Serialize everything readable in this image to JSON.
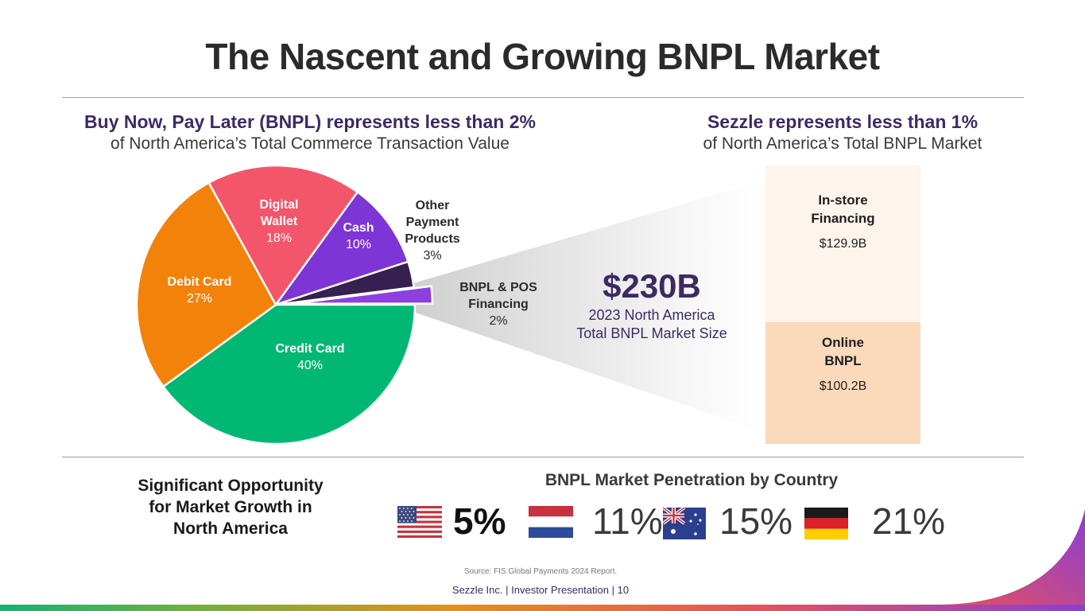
{
  "title": "The Nascent and Growing BNPL Market",
  "left_heading": {
    "strong": "Buy Now, Pay Later (BNPL) represents less than 2%",
    "sub": "of North America’s Total Commerce Transaction Value"
  },
  "right_heading": {
    "strong": "Sezzle represents less than 1%",
    "sub": "of North America’s Total BNPL Market"
  },
  "chart_data": {
    "type": "pie",
    "title": "North America Total Commerce Transaction Value",
    "slices": [
      {
        "label": "Credit Card",
        "value": 40,
        "display": "40%",
        "color": "#00b874",
        "label_color": "#ffffff"
      },
      {
        "label": "Debit Card",
        "value": 27,
        "display": "27%",
        "color": "#f2820a",
        "label_color": "#ffffff"
      },
      {
        "label": "Digital Wallet",
        "value": 18,
        "display": "18%",
        "color": "#f3566a",
        "label_color": "#ffffff"
      },
      {
        "label": "Cash",
        "value": 10,
        "display": "10%",
        "color": "#7d35d6",
        "label_color": "#ffffff"
      },
      {
        "label": "Other Payment Products",
        "value": 3,
        "display": "3%",
        "color": "#35204f",
        "label_color": "#2b2b2b"
      },
      {
        "label": "BNPL & POS Financing",
        "value": 2,
        "display": "2%",
        "color": "#8e3fe0",
        "label_color": "#2b2b2b"
      }
    ]
  },
  "labels": {
    "credit": {
      "name": "Credit Card",
      "pct": "40%"
    },
    "debit": {
      "name": "Debit Card",
      "pct": "27%"
    },
    "wallet": {
      "name": "Digital\nWallet",
      "pct": "18%"
    },
    "cash": {
      "name": "Cash",
      "pct": "10%"
    },
    "other": {
      "name": "Other\nPayment\nProducts",
      "pct": "3%"
    },
    "bnpl": {
      "name": "BNPL & POS\nFinancing",
      "pct": "2%"
    }
  },
  "market": {
    "size": "$230B",
    "caption_line1": "2023 North America",
    "caption_line2": "Total BNPL Market Size"
  },
  "bnpl_split": {
    "type": "stacked-bar",
    "segments": [
      {
        "label": "In-store\nFinancing",
        "value": 129.9,
        "display": "$129.9B",
        "color": "#fdf4ec"
      },
      {
        "label": "Online\nBNPL",
        "value": 100.2,
        "display": "$100.2B",
        "color": "#fbd9bb"
      }
    ]
  },
  "opportunity": "Significant Opportunity\nfor Market Growth in\nNorth America",
  "penetration": {
    "title": "BNPL Market Penetration by Country",
    "countries": [
      {
        "flag": "us-flag-icon",
        "value": "5%"
      },
      {
        "flag": "netherlands-flag-icon",
        "value": "11%"
      },
      {
        "flag": "australia-flag-icon",
        "value": "15%"
      },
      {
        "flag": "germany-flag-icon",
        "value": "21%"
      }
    ]
  },
  "source": "Source: FIS Global Payments 2024 Report.",
  "footer": {
    "company": "Sezzle Inc.",
    "doc": "Investor Presentation",
    "page": "10"
  },
  "colors": {
    "accent": "#3d2a63",
    "green": "#00b874",
    "orange": "#f2820a",
    "pink": "#f3566a",
    "purple": "#7d35d6"
  }
}
